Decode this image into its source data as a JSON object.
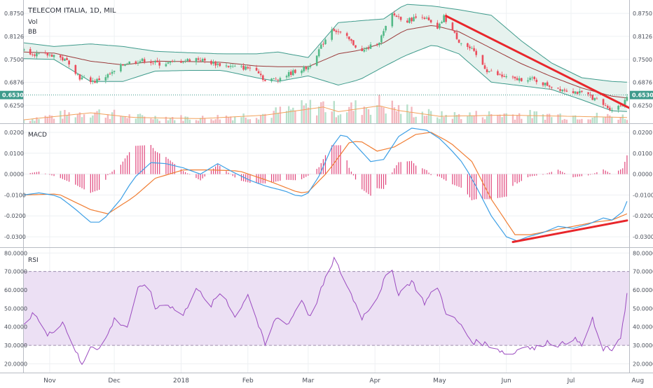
{
  "header": {
    "title": "TELECOM ITALIA, 1D, MIL",
    "vol_label": "Vol",
    "bb_label": "BB"
  },
  "colors": {
    "up": "#53b987",
    "down": "#eb4d5c",
    "sma": "#9b3b3b",
    "bands": "#3f9b8c",
    "band_fill": "#e6f2ee",
    "macd_line": "#3ea0e6",
    "signal_line": "#f07e34",
    "hist": "#e0457b",
    "rsi_line": "#9b4bc0",
    "rsi_zone": "#ece0f4",
    "trendline": "#e8262b",
    "last_price_bg": "#3f9b8c",
    "grid": "#eef0f3"
  },
  "price_panel": {
    "y_ticks": [
      "0.8750",
      "0.8126",
      "0.7500",
      "0.6876",
      "0.6250"
    ],
    "last_price": "0.6530"
  },
  "macd_panel": {
    "label": "MACD",
    "y_ticks": [
      "0.0200",
      "0.0100",
      "0.0000",
      "-0.0100",
      "-0.0200",
      "-0.0300"
    ]
  },
  "rsi_panel": {
    "label": "RSI",
    "y_ticks": [
      "80.0000",
      "70.0000",
      "60.0000",
      "50.0000",
      "40.0000",
      "30.0000",
      "20.0000"
    ]
  },
  "x_axis": {
    "ticks": [
      "Nov",
      "Dec",
      "2018",
      "Feb",
      "Mar",
      "Apr",
      "May",
      "Jun",
      "Jul",
      "Aug"
    ]
  },
  "chart_data": {
    "type": "line",
    "title": "TELECOM ITALIA, 1D, MIL",
    "x_range": [
      "2017-10-20",
      "2018-07-28"
    ],
    "price_ylim": [
      0.58,
      0.9
    ],
    "close_keypoints": [
      [
        "2017-10-20",
        0.775
      ],
      [
        "2017-10-27",
        0.762
      ],
      [
        "2017-11-03",
        0.762
      ],
      [
        "2017-11-10",
        0.742
      ],
      [
        "2017-11-15",
        0.7
      ],
      [
        "2017-11-22",
        0.69
      ],
      [
        "2017-11-30",
        0.712
      ],
      [
        "2017-12-06",
        0.74
      ],
      [
        "2017-12-15",
        0.748
      ],
      [
        "2017-12-22",
        0.738
      ],
      [
        "2017-12-29",
        0.742
      ],
      [
        "2018-01-08",
        0.752
      ],
      [
        "2018-01-17",
        0.738
      ],
      [
        "2018-01-26",
        0.728
      ],
      [
        "2018-02-05",
        0.725
      ],
      [
        "2018-02-09",
        0.69
      ],
      [
        "2018-02-16",
        0.7
      ],
      [
        "2018-02-23",
        0.718
      ],
      [
        "2018-03-01",
        0.728
      ],
      [
        "2018-03-06",
        0.775
      ],
      [
        "2018-03-12",
        0.835
      ],
      [
        "2018-03-19",
        0.808
      ],
      [
        "2018-03-26",
        0.77
      ],
      [
        "2018-04-03",
        0.8
      ],
      [
        "2018-04-09",
        0.872
      ],
      [
        "2018-04-16",
        0.855
      ],
      [
        "2018-04-23",
        0.87
      ],
      [
        "2018-04-30",
        0.83
      ],
      [
        "2018-05-03",
        0.865
      ],
      [
        "2018-05-10",
        0.8
      ],
      [
        "2018-05-16",
        0.775
      ],
      [
        "2018-05-23",
        0.72
      ],
      [
        "2018-05-29",
        0.705
      ],
      [
        "2018-06-05",
        0.695
      ],
      [
        "2018-06-12",
        0.698
      ],
      [
        "2018-06-19",
        0.682
      ],
      [
        "2018-06-26",
        0.67
      ],
      [
        "2018-07-03",
        0.662
      ],
      [
        "2018-07-10",
        0.65
      ],
      [
        "2018-07-17",
        0.622
      ],
      [
        "2018-07-20",
        0.615
      ],
      [
        "2018-07-23",
        0.622
      ],
      [
        "2018-07-25",
        0.628
      ],
      [
        "2018-07-27",
        0.653
      ]
    ],
    "bb_keypoints": [
      [
        "2017-10-20",
        0.752,
        0.795,
        0.77
      ],
      [
        "2017-11-03",
        0.75,
        0.785,
        0.767
      ],
      [
        "2017-11-20",
        0.69,
        0.792,
        0.745
      ],
      [
        "2017-12-05",
        0.69,
        0.785,
        0.735
      ],
      [
        "2017-12-20",
        0.718,
        0.772,
        0.745
      ],
      [
        "2018-01-05",
        0.72,
        0.768,
        0.744
      ],
      [
        "2018-01-20",
        0.72,
        0.765,
        0.742
      ],
      [
        "2018-02-05",
        0.7,
        0.765,
        0.732
      ],
      [
        "2018-02-15",
        0.69,
        0.77,
        0.73
      ],
      [
        "2018-03-01",
        0.705,
        0.755,
        0.73
      ],
      [
        "2018-03-15",
        0.68,
        0.85,
        0.765
      ],
      [
        "2018-03-25",
        0.695,
        0.855,
        0.775
      ],
      [
        "2018-04-05",
        0.73,
        0.86,
        0.795
      ],
      [
        "2018-04-15",
        0.76,
        0.9,
        0.83
      ],
      [
        "2018-04-28",
        0.79,
        0.895,
        0.843
      ],
      [
        "2018-05-10",
        0.765,
        0.885,
        0.825
      ],
      [
        "2018-05-25",
        0.688,
        0.87,
        0.78
      ],
      [
        "2018-06-08",
        0.678,
        0.8,
        0.738
      ],
      [
        "2018-06-22",
        0.668,
        0.74,
        0.703
      ],
      [
        "2018-07-06",
        0.64,
        0.7,
        0.672
      ],
      [
        "2018-07-20",
        0.61,
        0.69,
        0.65
      ],
      [
        "2018-07-27",
        0.608,
        0.688,
        0.645
      ]
    ],
    "volume_keypoints": [
      [
        "2017-10-20",
        3
      ],
      [
        "2017-11-20",
        9
      ],
      [
        "2017-12-10",
        5
      ],
      [
        "2018-01-10",
        4
      ],
      [
        "2018-02-09",
        7
      ],
      [
        "2018-03-08",
        14
      ],
      [
        "2018-03-15",
        10
      ],
      [
        "2018-04-03",
        15
      ],
      [
        "2018-04-12",
        11
      ],
      [
        "2018-05-01",
        6
      ],
      [
        "2018-06-01",
        7
      ],
      [
        "2018-07-01",
        6
      ],
      [
        "2018-07-27",
        5
      ]
    ],
    "volume_ylim": [
      0,
      25
    ],
    "macd_ylim": [
      -0.034,
      0.023
    ],
    "macd_keypoints": [
      [
        "2017-10-20",
        -0.01
      ],
      [
        "2017-10-27",
        -0.009
      ],
      [
        "2017-11-05",
        -0.0105
      ],
      [
        "2017-11-12",
        -0.016
      ],
      [
        "2017-11-20",
        -0.023
      ],
      [
        "2017-11-25",
        -0.023
      ],
      [
        "2017-12-04",
        -0.012
      ],
      [
        "2017-12-10",
        -0.002
      ],
      [
        "2017-12-18",
        0.0055
      ],
      [
        "2017-12-25",
        0.005
      ],
      [
        "2018-01-02",
        0.003
      ],
      [
        "2018-01-10",
        0.0
      ],
      [
        "2018-01-18",
        0.005
      ],
      [
        "2018-01-25",
        0.001
      ],
      [
        "2018-02-02",
        -0.003
      ],
      [
        "2018-02-10",
        -0.006
      ],
      [
        "2018-02-18",
        -0.008
      ],
      [
        "2018-02-25",
        -0.011
      ],
      [
        "2018-03-01",
        -0.009
      ],
      [
        "2018-03-06",
        -0.001
      ],
      [
        "2018-03-12",
        0.013
      ],
      [
        "2018-03-17",
        0.02
      ],
      [
        "2018-03-22",
        0.015
      ],
      [
        "2018-03-30",
        0.006
      ],
      [
        "2018-04-05",
        0.007
      ],
      [
        "2018-04-12",
        0.018
      ],
      [
        "2018-04-18",
        0.022
      ],
      [
        "2018-04-25",
        0.021
      ],
      [
        "2018-05-01",
        0.017
      ],
      [
        "2018-05-06",
        0.012
      ],
      [
        "2018-05-12",
        0.005
      ],
      [
        "2018-05-18",
        -0.006
      ],
      [
        "2018-05-25",
        -0.02
      ],
      [
        "2018-06-01",
        -0.03
      ],
      [
        "2018-06-06",
        -0.032
      ],
      [
        "2018-06-11",
        -0.03
      ],
      [
        "2018-06-18",
        -0.028
      ],
      [
        "2018-06-25",
        -0.025
      ],
      [
        "2018-07-02",
        -0.026
      ],
      [
        "2018-07-09",
        -0.024
      ],
      [
        "2018-07-16",
        -0.021
      ],
      [
        "2018-07-20",
        -0.022
      ],
      [
        "2018-07-25",
        -0.018
      ],
      [
        "2018-07-27",
        -0.013
      ]
    ],
    "signal_keypoints": [
      [
        "2017-10-20",
        -0.01
      ],
      [
        "2017-11-05",
        -0.0095
      ],
      [
        "2017-11-20",
        -0.017
      ],
      [
        "2017-11-28",
        -0.019
      ],
      [
        "2017-12-10",
        -0.011
      ],
      [
        "2017-12-20",
        -0.002
      ],
      [
        "2018-01-02",
        0.002
      ],
      [
        "2018-01-15",
        0.002
      ],
      [
        "2018-01-28",
        0.0015
      ],
      [
        "2018-02-10",
        -0.003
      ],
      [
        "2018-02-25",
        -0.009
      ],
      [
        "2018-03-01",
        -0.0085
      ],
      [
        "2018-03-10",
        0.001
      ],
      [
        "2018-03-20",
        0.015
      ],
      [
        "2018-03-25",
        0.016
      ],
      [
        "2018-04-02",
        0.011
      ],
      [
        "2018-04-10",
        0.013
      ],
      [
        "2018-04-20",
        0.019
      ],
      [
        "2018-04-27",
        0.02
      ],
      [
        "2018-05-06",
        0.015
      ],
      [
        "2018-05-16",
        0.006
      ],
      [
        "2018-05-25",
        -0.012
      ],
      [
        "2018-06-05",
        -0.029
      ],
      [
        "2018-06-12",
        -0.029
      ],
      [
        "2018-06-22",
        -0.027
      ],
      [
        "2018-07-02",
        -0.025
      ],
      [
        "2018-07-12",
        -0.023
      ],
      [
        "2018-07-20",
        -0.022
      ],
      [
        "2018-07-27",
        -0.019
      ]
    ],
    "rsi_ylim": [
      16,
      82
    ],
    "rsi_keypoints": [
      [
        "2017-10-20",
        40
      ],
      [
        "2017-10-25",
        48
      ],
      [
        "2017-10-31",
        35
      ],
      [
        "2017-11-07",
        43
      ],
      [
        "2017-11-12",
        30
      ],
      [
        "2017-11-16",
        19
      ],
      [
        "2017-11-20",
        30
      ],
      [
        "2017-11-25",
        28
      ],
      [
        "2017-12-01",
        44
      ],
      [
        "2017-12-07",
        40
      ],
      [
        "2017-12-12",
        60
      ],
      [
        "2017-12-16",
        65
      ],
      [
        "2017-12-20",
        50
      ],
      [
        "2017-12-25",
        53
      ],
      [
        "2018-01-02",
        46
      ],
      [
        "2018-01-08",
        62
      ],
      [
        "2018-01-14",
        50
      ],
      [
        "2018-01-20",
        60
      ],
      [
        "2018-01-26",
        45
      ],
      [
        "2018-02-01",
        58
      ],
      [
        "2018-02-09",
        30
      ],
      [
        "2018-02-14",
        45
      ],
      [
        "2018-02-20",
        42
      ],
      [
        "2018-02-26",
        55
      ],
      [
        "2018-03-02",
        45
      ],
      [
        "2018-03-07",
        60
      ],
      [
        "2018-03-13",
        77
      ],
      [
        "2018-03-18",
        65
      ],
      [
        "2018-03-26",
        45
      ],
      [
        "2018-04-02",
        56
      ],
      [
        "2018-04-08",
        73
      ],
      [
        "2018-04-12",
        58
      ],
      [
        "2018-04-18",
        65
      ],
      [
        "2018-04-24",
        53
      ],
      [
        "2018-04-30",
        62
      ],
      [
        "2018-05-04",
        48
      ],
      [
        "2018-05-10",
        42
      ],
      [
        "2018-05-16",
        32
      ],
      [
        "2018-05-22",
        31
      ],
      [
        "2018-05-28",
        28
      ],
      [
        "2018-06-03",
        24
      ],
      [
        "2018-06-08",
        30
      ],
      [
        "2018-06-14",
        28
      ],
      [
        "2018-06-20",
        32
      ],
      [
        "2018-06-26",
        30
      ],
      [
        "2018-07-02",
        34
      ],
      [
        "2018-07-06",
        30
      ],
      [
        "2018-07-11",
        44
      ],
      [
        "2018-07-15",
        28
      ],
      [
        "2018-07-20",
        28
      ],
      [
        "2018-07-24",
        35
      ],
      [
        "2018-07-26",
        48
      ],
      [
        "2018-07-27",
        58
      ]
    ],
    "rsi_band": [
      30,
      70
    ],
    "price_trendline": [
      [
        "2018-05-04",
        0.868
      ],
      [
        "2018-07-28",
        0.618
      ]
    ],
    "macd_trendline": [
      [
        "2018-06-04",
        -0.0325
      ],
      [
        "2018-07-27",
        -0.0222
      ]
    ]
  }
}
